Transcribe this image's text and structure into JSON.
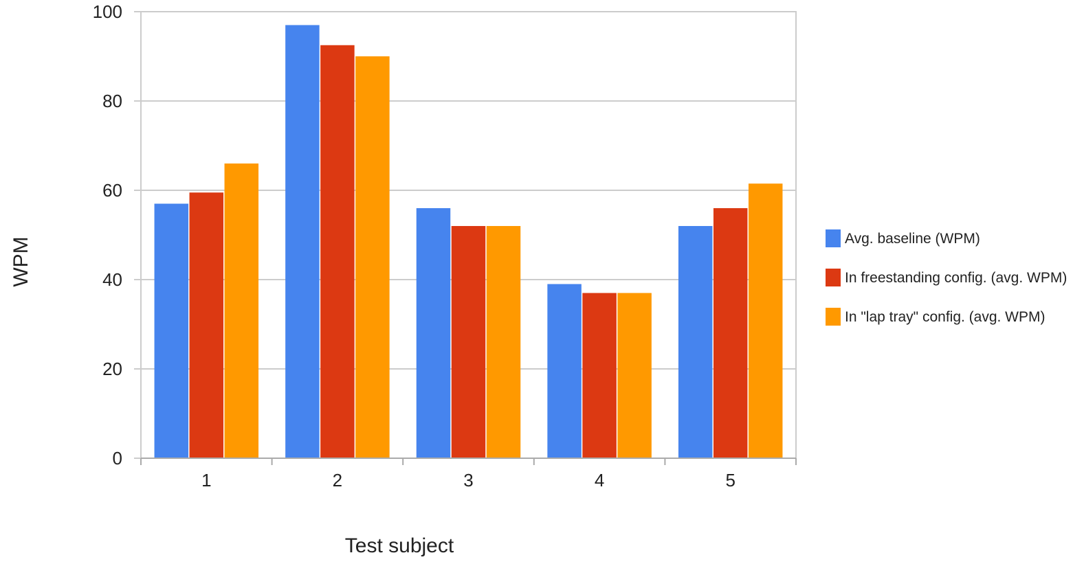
{
  "chart_data": {
    "type": "bar",
    "title": "",
    "xlabel": "Test subject",
    "ylabel": "WPM",
    "categories": [
      "1",
      "2",
      "3",
      "4",
      "5"
    ],
    "ylim": [
      0,
      100
    ],
    "yticks": [
      "0",
      "20",
      "40",
      "60",
      "80",
      "100"
    ],
    "grid": true,
    "legend_position": "right",
    "series": [
      {
        "name": "Avg. baseline (WPM)",
        "color": "#4684ee",
        "values": [
          57,
          97,
          56,
          39,
          52
        ]
      },
      {
        "name": "In freestanding config. (avg. WPM)",
        "color": "#dc3912",
        "values": [
          59.5,
          92.5,
          52,
          37,
          56
        ]
      },
      {
        "name": "In \"lap tray\" config. (avg. WPM)",
        "color": "#ff9900",
        "values": [
          66,
          90,
          52,
          37,
          61.5
        ]
      }
    ]
  }
}
